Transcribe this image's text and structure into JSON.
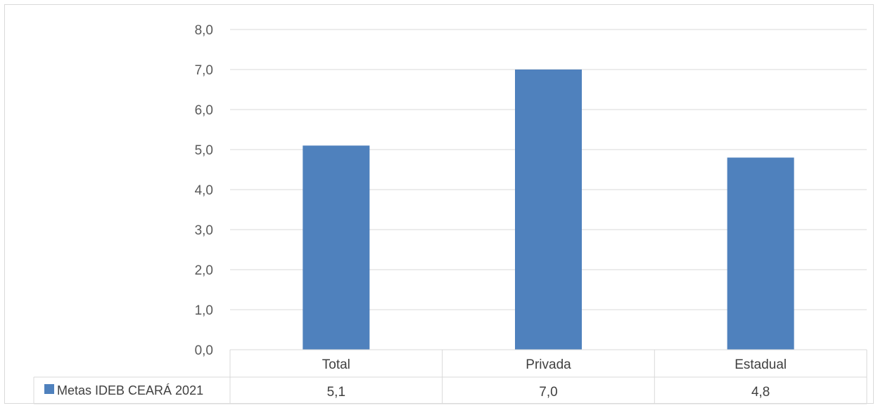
{
  "chart_data": {
    "type": "bar",
    "categories": [
      "Total",
      "Privada",
      "Estadual"
    ],
    "series": [
      {
        "name": "Metas IDEB CEARÁ 2021",
        "values": [
          5.1,
          7.0,
          4.8
        ],
        "value_labels": [
          "5,1",
          "7,0",
          "4,8"
        ]
      }
    ],
    "ylim": [
      0,
      8
    ],
    "yticks": [
      "0,0",
      "1,0",
      "2,0",
      "3,0",
      "4,0",
      "5,0",
      "6,0",
      "7,0",
      "8,0"
    ],
    "grid": true,
    "legend_placement": "data-table",
    "bar_color": "#4f81bd",
    "title": "",
    "xlabel": "",
    "ylabel": ""
  }
}
